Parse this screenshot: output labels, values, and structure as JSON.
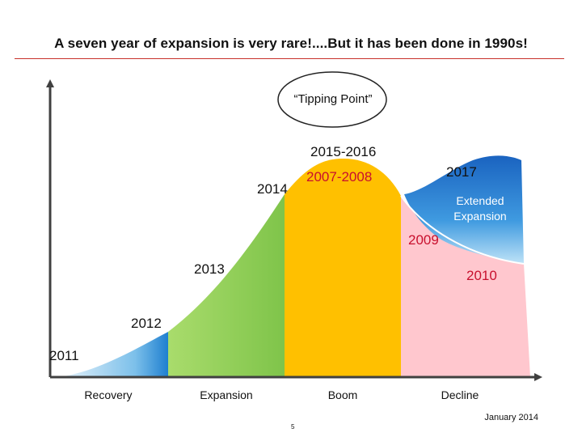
{
  "header": {
    "title": "A seven year of expansion is very rare!....But it has been done in 1990s!"
  },
  "callout": {
    "text": "“Tipping Point”"
  },
  "years": {
    "y2011": "2011",
    "y2012": "2012",
    "y2013": "2013",
    "y2014": "2014",
    "y2015_2016": "2015-2016",
    "y2007_2008": "2007-2008",
    "y2017": "2017",
    "y2009": "2009",
    "y2010": "2010"
  },
  "extended": {
    "line1": "Extended",
    "line2": "Expansion"
  },
  "phases": {
    "recovery": "Recovery",
    "expansion": "Expansion",
    "boom": "Boom",
    "decline": "Decline"
  },
  "footer": {
    "date": "January 2014",
    "page": "5"
  },
  "colors": {
    "recovery": "#2f8fd8",
    "expansion": "#92d050",
    "boom": "#ffc000",
    "decline": "#ffc7ce",
    "extended": "#1f6fc6",
    "accent_red": "#c8102e",
    "axis": "#404040"
  }
}
